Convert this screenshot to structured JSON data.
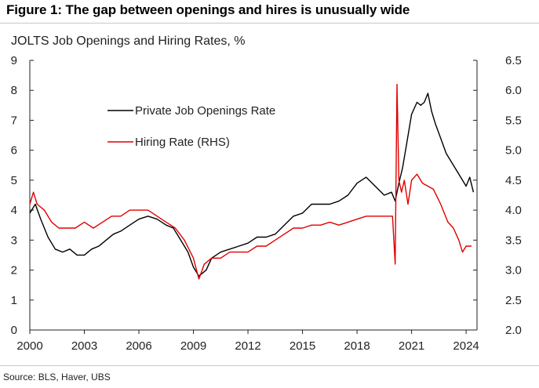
{
  "figure": {
    "title": "Figure 1: The gap between openings and hires is unusually wide",
    "subtitle": "JOLTS Job Openings and Hiring Rates, %",
    "source": "Source: BLS, Haver, UBS"
  },
  "colors": {
    "openings": "#000000",
    "hiring": "#e00000",
    "axis": "#222222"
  },
  "chart_data": {
    "type": "line",
    "title": "JOLTS Job Openings and Hiring Rates, %",
    "xlim": [
      2000,
      2024.6
    ],
    "ylim_left": [
      0,
      9
    ],
    "ylim_right": [
      2.0,
      6.5
    ],
    "x_ticks": [
      "2000",
      "2003",
      "2006",
      "2009",
      "2012",
      "2015",
      "2018",
      "2021",
      "2024"
    ],
    "x_tick_values": [
      2000,
      2003,
      2006,
      2009,
      2012,
      2015,
      2018,
      2021,
      2024
    ],
    "y_left_ticks": [
      "0",
      "1",
      "2",
      "3",
      "4",
      "5",
      "6",
      "7",
      "8",
      "9"
    ],
    "y_left_tick_values": [
      0,
      1,
      2,
      3,
      4,
      5,
      6,
      7,
      8,
      9
    ],
    "y_right_ticks": [
      "2.0",
      "2.5",
      "3.0",
      "3.5",
      "4.0",
      "4.5",
      "5.0",
      "5.5",
      "6.0",
      "6.5"
    ],
    "y_right_tick_values": [
      2.0,
      2.5,
      3.0,
      3.5,
      4.0,
      4.5,
      5.0,
      5.5,
      6.0,
      6.5
    ],
    "grid": false,
    "legend_position": "upper-left-center",
    "series": [
      {
        "name": "Private Job Openings Rate",
        "axis": "left",
        "x": [
          2000.0,
          2000.3,
          2000.6,
          2001.0,
          2001.4,
          2001.8,
          2002.2,
          2002.6,
          2003.0,
          2003.4,
          2003.8,
          2004.2,
          2004.6,
          2005.0,
          2005.5,
          2006.0,
          2006.5,
          2007.0,
          2007.5,
          2007.9,
          2008.3,
          2008.7,
          2009.0,
          2009.3,
          2009.7,
          2010.0,
          2010.5,
          2011.0,
          2011.5,
          2012.0,
          2012.5,
          2013.0,
          2013.5,
          2014.0,
          2014.5,
          2015.0,
          2015.5,
          2016.0,
          2016.5,
          2017.0,
          2017.5,
          2018.0,
          2018.5,
          2019.0,
          2019.5,
          2019.9,
          2020.1,
          2020.3,
          2020.5,
          2020.7,
          2021.0,
          2021.3,
          2021.5,
          2021.7,
          2021.9,
          2022.1,
          2022.3,
          2022.6,
          2022.9,
          2023.2,
          2023.5,
          2023.8,
          2024.0,
          2024.2,
          2024.4
        ],
        "values": [
          3.9,
          4.2,
          3.7,
          3.1,
          2.7,
          2.6,
          2.7,
          2.5,
          2.5,
          2.7,
          2.8,
          3.0,
          3.2,
          3.3,
          3.5,
          3.7,
          3.8,
          3.7,
          3.5,
          3.4,
          3.0,
          2.6,
          2.1,
          1.8,
          2.0,
          2.4,
          2.6,
          2.7,
          2.8,
          2.9,
          3.1,
          3.1,
          3.2,
          3.5,
          3.8,
          3.9,
          4.2,
          4.2,
          4.2,
          4.3,
          4.5,
          4.9,
          5.1,
          4.8,
          4.5,
          4.6,
          4.3,
          4.9,
          5.4,
          6.1,
          7.2,
          7.6,
          7.5,
          7.6,
          7.9,
          7.3,
          6.9,
          6.4,
          5.9,
          5.6,
          5.3,
          5.0,
          4.8,
          5.1,
          4.6
        ]
      },
      {
        "name": "Hiring Rate (RHS)",
        "axis": "right",
        "x": [
          2000.0,
          2000.2,
          2000.4,
          2000.8,
          2001.2,
          2001.6,
          2002.0,
          2002.5,
          2003.0,
          2003.5,
          2004.0,
          2004.5,
          2005.0,
          2005.5,
          2006.0,
          2006.5,
          2007.0,
          2007.5,
          2008.0,
          2008.5,
          2009.0,
          2009.3,
          2009.6,
          2010.0,
          2010.5,
          2011.0,
          2011.5,
          2012.0,
          2012.5,
          2013.0,
          2013.5,
          2014.0,
          2014.5,
          2015.0,
          2015.5,
          2016.0,
          2016.5,
          2017.0,
          2017.5,
          2018.0,
          2018.5,
          2019.0,
          2019.5,
          2019.95,
          2020.1,
          2020.2,
          2020.3,
          2020.45,
          2020.6,
          2020.8,
          2021.0,
          2021.3,
          2021.6,
          2021.9,
          2022.2,
          2022.6,
          2023.0,
          2023.3,
          2023.6,
          2023.8,
          2024.0,
          2024.3
        ],
        "values": [
          4.1,
          4.3,
          4.1,
          4.0,
          3.8,
          3.7,
          3.7,
          3.7,
          3.8,
          3.7,
          3.8,
          3.9,
          3.9,
          4.0,
          4.0,
          4.0,
          3.9,
          3.8,
          3.7,
          3.5,
          3.2,
          2.85,
          3.1,
          3.2,
          3.2,
          3.3,
          3.3,
          3.3,
          3.4,
          3.4,
          3.5,
          3.6,
          3.7,
          3.7,
          3.75,
          3.75,
          3.8,
          3.75,
          3.8,
          3.85,
          3.9,
          3.9,
          3.9,
          3.9,
          3.1,
          6.1,
          4.5,
          4.3,
          4.5,
          4.1,
          4.5,
          4.6,
          4.45,
          4.4,
          4.35,
          4.1,
          3.8,
          3.7,
          3.5,
          3.3,
          3.4,
          3.4
        ]
      }
    ]
  }
}
